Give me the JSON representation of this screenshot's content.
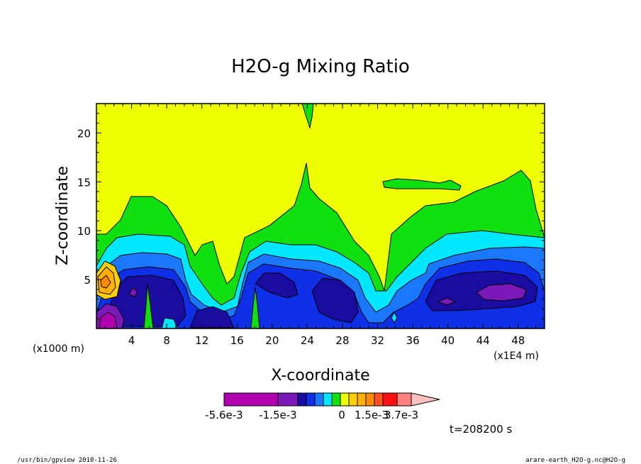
{
  "chart_data": {
    "type": "heatmap",
    "title": "H2O-g Mixing Ratio",
    "xlabel": "X-coordinate",
    "ylabel": "Z-coordinate",
    "x_unit": "(x1E4 m)",
    "y_unit": "(x1000 m)",
    "xlim": [
      0,
      51
    ],
    "ylim": [
      0,
      23
    ],
    "x_ticks": [
      4,
      8,
      12,
      16,
      20,
      24,
      28,
      32,
      36,
      40,
      44,
      48
    ],
    "x_tick_labels": [
      "4",
      "8",
      "12",
      "16",
      "20",
      "24",
      "28",
      "32",
      "36",
      "40",
      "44",
      "48"
    ],
    "y_ticks": [
      5,
      10,
      15,
      20
    ],
    "y_tick_labels": [
      "5",
      "10",
      "15",
      "20"
    ],
    "colorbar": {
      "levels": [
        -0.0056,
        -0.0015,
        0,
        0.0015,
        0.0037
      ],
      "labels": [
        "-5.6e-3",
        "-1.5e-3",
        "0",
        "1.5e-3",
        "3.7e-3"
      ],
      "colors": [
        "#b000b0",
        "#7a18b8",
        "#1a0ca0",
        "#1030e8",
        "#1a78ff",
        "#00e8ff",
        "#10e010",
        "#f0ff00",
        "#ffd000",
        "#ffb000",
        "#ff8c00",
        "#ff5020",
        "#ff1010",
        "#ff8080",
        "#ffc0c0"
      ]
    },
    "time_label": "t=208200 s"
  },
  "footer": {
    "left": "/usr/bin/gpview  2010-11-26",
    "right": "arare-earth_H2O-g.nc@H2O-g"
  }
}
